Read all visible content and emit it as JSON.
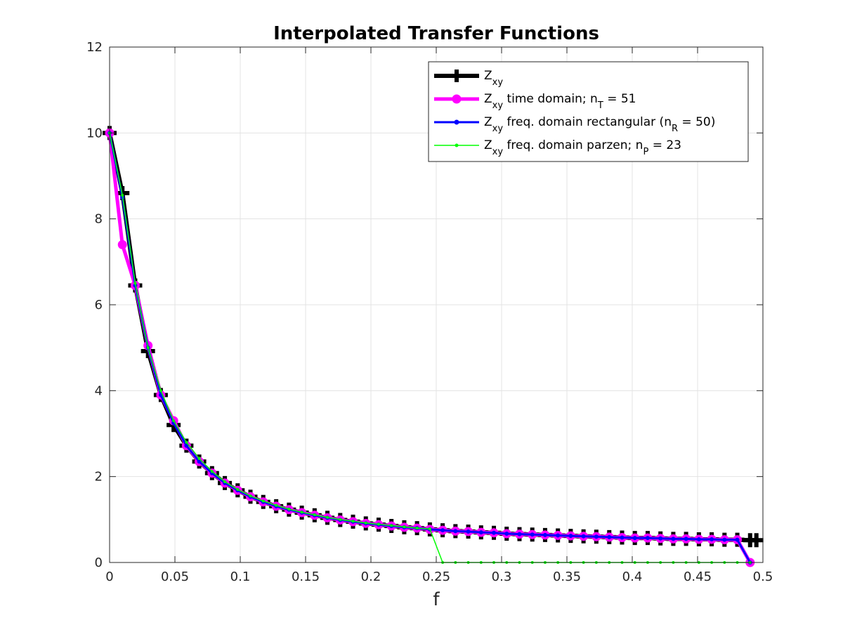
{
  "chart_data": {
    "type": "line",
    "title": "Interpolated Transfer Functions",
    "xlabel": "f",
    "ylabel": "",
    "xlim": [
      0,
      0.5
    ],
    "ylim": [
      0,
      12
    ],
    "xticks": [
      "0",
      "0.05",
      "0.1",
      "0.15",
      "0.2",
      "0.25",
      "0.3",
      "0.35",
      "0.4",
      "0.45",
      "0.5"
    ],
    "yticks": [
      "0",
      "2",
      "4",
      "6",
      "8",
      "10",
      "12"
    ],
    "grid": true,
    "legend_position": "top-right",
    "series": [
      {
        "name": "Z_xy",
        "legend": {
          "base": "Z",
          "sub": "xy",
          "rest": ""
        },
        "color": "#000000",
        "marker": "plus",
        "x": [
          0.0,
          0.0098,
          0.0196,
          0.0294,
          0.0392,
          0.049,
          0.0588,
          0.0686,
          0.0784,
          0.0882,
          0.098,
          0.1078,
          0.1176,
          0.1275,
          0.1373,
          0.1471,
          0.1569,
          0.1667,
          0.1765,
          0.1863,
          0.1961,
          0.2059,
          0.2157,
          0.2255,
          0.2353,
          0.2451,
          0.2549,
          0.2647,
          0.2745,
          0.2843,
          0.2941,
          0.3039,
          0.3137,
          0.3235,
          0.3333,
          0.3431,
          0.3529,
          0.3627,
          0.3725,
          0.3824,
          0.3922,
          0.402,
          0.4118,
          0.4216,
          0.4314,
          0.4412,
          0.451,
          0.4608,
          0.4706,
          0.4804,
          0.4902,
          0.495
        ],
        "y": [
          10.0,
          8.6,
          6.45,
          4.92,
          3.9,
          3.2,
          2.72,
          2.35,
          2.08,
          1.85,
          1.68,
          1.53,
          1.41,
          1.31,
          1.23,
          1.16,
          1.1,
          1.04,
          0.99,
          0.95,
          0.91,
          0.88,
          0.85,
          0.82,
          0.8,
          0.77,
          0.75,
          0.73,
          0.72,
          0.7,
          0.69,
          0.67,
          0.66,
          0.65,
          0.64,
          0.63,
          0.62,
          0.61,
          0.6,
          0.59,
          0.58,
          0.57,
          0.57,
          0.56,
          0.55,
          0.55,
          0.54,
          0.54,
          0.53,
          0.53,
          0.52,
          0.52
        ]
      },
      {
        "name": "Z_xy time domain; n_T = 51",
        "legend": {
          "base": "Z",
          "sub": "xy",
          "rest": " time domain; n",
          "sub2": "T",
          "rest2": " = 51"
        },
        "color": "#ff00ff",
        "marker": "circle",
        "x": [
          0.0,
          0.0098,
          0.0196,
          0.0294,
          0.0392,
          0.049,
          0.0588,
          0.0686,
          0.0784,
          0.0882,
          0.098,
          0.1078,
          0.1176,
          0.1275,
          0.1373,
          0.1471,
          0.1569,
          0.1667,
          0.1765,
          0.1863,
          0.1961,
          0.2059,
          0.2157,
          0.2255,
          0.2353,
          0.2451,
          0.2549,
          0.2647,
          0.2745,
          0.2843,
          0.2941,
          0.3039,
          0.3137,
          0.3235,
          0.3333,
          0.3431,
          0.3529,
          0.3627,
          0.3725,
          0.3824,
          0.3922,
          0.402,
          0.4118,
          0.4216,
          0.4314,
          0.4412,
          0.451,
          0.4608,
          0.4706,
          0.4804,
          0.4902
        ],
        "y": [
          10.0,
          7.4,
          6.45,
          5.05,
          3.9,
          3.3,
          2.72,
          2.35,
          2.08,
          1.85,
          1.68,
          1.53,
          1.41,
          1.31,
          1.23,
          1.16,
          1.1,
          1.04,
          0.99,
          0.95,
          0.91,
          0.88,
          0.85,
          0.82,
          0.8,
          0.77,
          0.75,
          0.73,
          0.72,
          0.7,
          0.69,
          0.67,
          0.66,
          0.65,
          0.64,
          0.63,
          0.62,
          0.61,
          0.6,
          0.59,
          0.58,
          0.57,
          0.57,
          0.56,
          0.55,
          0.55,
          0.54,
          0.54,
          0.53,
          0.53,
          0.0
        ]
      },
      {
        "name": "Z_xy freq. domain rectangular (n_R = 50)",
        "legend": {
          "base": "Z",
          "sub": "xy",
          "rest": " freq. domain rectangular (n",
          "sub2": "R",
          "rest2": " = 50)"
        },
        "color": "#0000ff",
        "marker": "dot",
        "x": [
          0.0,
          0.0098,
          0.0196,
          0.0294,
          0.0392,
          0.049,
          0.0588,
          0.0686,
          0.0784,
          0.0882,
          0.098,
          0.1078,
          0.1176,
          0.1275,
          0.1373,
          0.1471,
          0.1569,
          0.1667,
          0.1765,
          0.1863,
          0.1961,
          0.2059,
          0.2157,
          0.2255,
          0.2353,
          0.2451,
          0.2549,
          0.2647,
          0.2745,
          0.2843,
          0.2941,
          0.3039,
          0.3137,
          0.3235,
          0.3333,
          0.3431,
          0.3529,
          0.3627,
          0.3725,
          0.3824,
          0.3922,
          0.402,
          0.4118,
          0.4216,
          0.4314,
          0.4412,
          0.451,
          0.4608,
          0.4706,
          0.4804,
          0.4902
        ],
        "y": [
          10.0,
          8.5,
          6.45,
          5.0,
          3.9,
          3.25,
          2.72,
          2.35,
          2.08,
          1.85,
          1.68,
          1.53,
          1.41,
          1.31,
          1.23,
          1.16,
          1.1,
          1.04,
          0.99,
          0.95,
          0.91,
          0.88,
          0.85,
          0.82,
          0.8,
          0.77,
          0.75,
          0.73,
          0.72,
          0.7,
          0.69,
          0.67,
          0.66,
          0.65,
          0.64,
          0.63,
          0.62,
          0.61,
          0.6,
          0.59,
          0.58,
          0.57,
          0.57,
          0.56,
          0.55,
          0.55,
          0.54,
          0.54,
          0.53,
          0.53,
          0.0
        ]
      },
      {
        "name": "Z_xy freq. domain parzen; n_P = 23",
        "legend": {
          "base": "Z",
          "sub": "xy",
          "rest": " freq. domain parzen; n",
          "sub2": "P",
          "rest2": " = 23"
        },
        "color": "#00ff00",
        "marker": "dot",
        "x": [
          0.0,
          0.0098,
          0.0196,
          0.0294,
          0.0392,
          0.049,
          0.0588,
          0.0686,
          0.0784,
          0.0882,
          0.098,
          0.1078,
          0.1176,
          0.1275,
          0.1373,
          0.1471,
          0.1569,
          0.1667,
          0.1765,
          0.1863,
          0.1961,
          0.2059,
          0.2157,
          0.2255,
          0.2353,
          0.2451,
          0.2549,
          0.2647,
          0.2745,
          0.2843,
          0.2941,
          0.3039,
          0.3137,
          0.3235,
          0.3333,
          0.3431,
          0.3529,
          0.3627,
          0.3725,
          0.3824,
          0.3922,
          0.402,
          0.4118,
          0.4216,
          0.4314,
          0.4412,
          0.451,
          0.4608,
          0.4706,
          0.4804,
          0.4902
        ],
        "y": [
          10.0,
          8.55,
          6.5,
          5.0,
          4.0,
          3.3,
          2.8,
          2.42,
          2.12,
          1.88,
          1.7,
          1.55,
          1.43,
          1.33,
          1.24,
          1.17,
          1.11,
          1.05,
          1.0,
          0.96,
          0.92,
          0.89,
          0.86,
          0.83,
          0.8,
          0.78,
          0.0,
          0.0,
          0.0,
          0.0,
          0.0,
          0.0,
          0.0,
          0.0,
          0.0,
          0.0,
          0.0,
          0.0,
          0.0,
          0.0,
          0.0,
          0.0,
          0.0,
          0.0,
          0.0,
          0.0,
          0.0,
          0.0,
          0.0,
          0.0,
          0.0
        ]
      }
    ]
  }
}
